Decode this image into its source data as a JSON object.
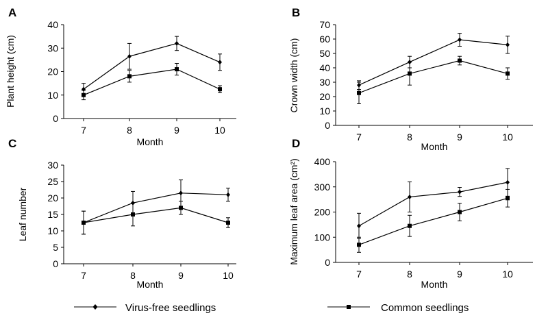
{
  "legend": {
    "placement": "bottom",
    "items": [
      {
        "label": "Virus-free seedlings",
        "marker": "diamond"
      },
      {
        "label": "Common seedlings",
        "marker": "square"
      }
    ]
  },
  "chart_data": [
    {
      "panel": "A",
      "type": "line",
      "xlabel": "Month",
      "ylabel": "Plant height (cm)",
      "categories": [
        "7",
        "8",
        "9",
        "10"
      ],
      "ylim": [
        0,
        40
      ],
      "yticks": [
        0,
        10,
        20,
        30,
        40
      ],
      "grid": false,
      "series": [
        {
          "name": "Virus-free seedlings",
          "marker": "diamond",
          "values": [
            12.5,
            26.5,
            32,
            24
          ],
          "errors": [
            2.5,
            5.5,
            3,
            3.5
          ]
        },
        {
          "name": "Common seedlings",
          "marker": "square",
          "values": [
            10,
            18,
            21,
            12.5
          ],
          "errors": [
            2,
            2.5,
            2.5,
            1.5
          ]
        }
      ]
    },
    {
      "panel": "B",
      "type": "line",
      "xlabel": "Month",
      "ylabel": "Crown width (cm)",
      "categories": [
        "7",
        "8",
        "9",
        "10"
      ],
      "ylim": [
        0,
        70
      ],
      "yticks": [
        0,
        10,
        20,
        30,
        40,
        50,
        60,
        70
      ],
      "grid": false,
      "series": [
        {
          "name": "Virus-free seedlings",
          "marker": "diamond",
          "values": [
            28,
            44,
            59.5,
            56
          ],
          "errors": [
            3,
            4,
            4.5,
            6
          ]
        },
        {
          "name": "Common seedlings",
          "marker": "square",
          "values": [
            22.5,
            36,
            45,
            36
          ],
          "errors": [
            7.5,
            8,
            3,
            4
          ]
        }
      ]
    },
    {
      "panel": "C",
      "type": "line",
      "xlabel": "Month",
      "ylabel": "Leaf number",
      "categories": [
        "7",
        "8",
        "9",
        "10"
      ],
      "ylim": [
        0,
        30
      ],
      "yticks": [
        0,
        5,
        10,
        15,
        20,
        25,
        30
      ],
      "grid": false,
      "series": [
        {
          "name": "Virus-free seedlings",
          "marker": "diamond",
          "values": [
            12.5,
            18.5,
            21.5,
            21
          ],
          "errors": [
            3.5,
            3.5,
            4,
            2
          ]
        },
        {
          "name": "Common seedlings",
          "marker": "square",
          "values": [
            12.5,
            15,
            17,
            12.5
          ],
          "errors": [
            3.5,
            3.5,
            2,
            1.5
          ]
        }
      ]
    },
    {
      "panel": "D",
      "type": "line",
      "xlabel": "Month",
      "ylabel": "Maximum leaf area (cm²)",
      "categories": [
        "7",
        "8",
        "9",
        "10"
      ],
      "ylim": [
        0,
        400
      ],
      "yticks": [
        0,
        100,
        200,
        300,
        400
      ],
      "grid": false,
      "series": [
        {
          "name": "Virus-free seedlings",
          "marker": "diamond",
          "values": [
            145,
            260,
            280,
            318
          ],
          "errors": [
            50,
            60,
            18,
            55
          ]
        },
        {
          "name": "Common seedlings",
          "marker": "square",
          "values": [
            70,
            145,
            200,
            255
          ],
          "errors": [
            30,
            42,
            35,
            35
          ]
        }
      ]
    }
  ]
}
